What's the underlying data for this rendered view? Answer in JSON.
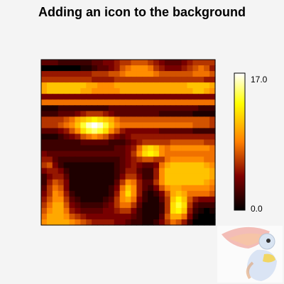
{
  "chart_data": {
    "type": "heatmap",
    "title": "Adding an icon to the background",
    "xlabel": "",
    "ylabel": "",
    "nx": 31,
    "ny": 29,
    "zlim": [
      0.0,
      17.0
    ],
    "colorbar": {
      "ticks": [
        {
          "value": 17.0,
          "label": "17.0"
        },
        {
          "value": 0.0,
          "label": "0.0"
        }
      ]
    },
    "rows_top_to_bottom": [
      [
        3,
        3,
        3,
        2,
        2,
        2,
        2,
        2,
        2,
        3,
        3,
        4,
        4,
        5,
        6,
        6,
        7,
        7,
        7,
        6,
        5,
        4,
        3,
        3,
        3,
        4,
        5,
        6,
        6,
        6,
        6
      ],
      [
        0,
        0,
        0,
        0,
        0,
        0,
        0,
        1,
        1,
        2,
        3,
        3,
        4,
        5,
        7,
        8,
        9,
        9,
        9,
        8,
        6,
        5,
        4,
        4,
        4,
        5,
        6,
        7,
        8,
        7,
        5
      ],
      [
        5,
        5,
        5,
        5,
        5,
        5,
        5,
        5,
        5,
        6,
        6,
        6,
        7,
        7,
        8,
        9,
        9,
        9,
        9,
        9,
        8,
        7,
        7,
        7,
        7,
        7,
        7,
        8,
        8,
        8,
        7
      ],
      [
        6,
        6,
        6,
        6,
        6,
        6,
        6,
        6,
        6,
        5,
        5,
        5,
        5,
        6,
        6,
        6,
        6,
        6,
        6,
        6,
        6,
        6,
        6,
        6,
        6,
        6,
        6,
        6,
        6,
        5,
        5
      ],
      [
        10,
        11,
        11,
        11,
        11,
        11,
        11,
        11,
        10,
        10,
        9,
        9,
        9,
        10,
        10,
        10,
        10,
        10,
        10,
        10,
        10,
        10,
        10,
        10,
        10,
        10,
        11,
        11,
        11,
        11,
        10
      ],
      [
        10,
        11,
        11,
        11,
        11,
        11,
        11,
        10,
        10,
        9,
        9,
        9,
        9,
        9,
        10,
        10,
        10,
        10,
        10,
        10,
        10,
        10,
        10,
        10,
        10,
        10,
        10,
        11,
        11,
        10,
        9
      ],
      [
        4,
        4,
        4,
        4,
        4,
        4,
        4,
        4,
        4,
        4,
        4,
        4,
        4,
        4,
        4,
        4,
        4,
        4,
        4,
        4,
        4,
        4,
        4,
        4,
        4,
        4,
        4,
        4,
        4,
        4,
        4
      ],
      [
        8,
        8,
        8,
        8,
        8,
        8,
        8,
        8,
        8,
        8,
        8,
        8,
        8,
        8,
        8,
        8,
        8,
        8,
        8,
        8,
        8,
        8,
        8,
        8,
        8,
        8,
        8,
        8,
        8,
        8,
        8
      ],
      [
        1,
        1,
        1,
        2,
        2,
        2,
        2,
        2,
        2,
        2,
        2,
        2,
        3,
        3,
        3,
        3,
        3,
        3,
        3,
        3,
        3,
        3,
        3,
        3,
        3,
        3,
        3,
        3,
        2,
        2,
        2
      ],
      [
        2,
        2,
        2,
        3,
        3,
        3,
        4,
        5,
        6,
        6,
        6,
        5,
        4,
        3,
        3,
        3,
        3,
        3,
        3,
        3,
        3,
        2,
        2,
        2,
        2,
        2,
        2,
        1,
        1,
        1,
        1
      ],
      [
        6,
        6,
        6,
        6,
        7,
        8,
        10,
        11,
        12,
        13,
        12,
        11,
        10,
        8,
        7,
        7,
        7,
        7,
        7,
        7,
        7,
        7,
        7,
        7,
        7,
        7,
        7,
        7,
        7,
        7,
        6
      ],
      [
        6,
        6,
        6,
        7,
        8,
        9,
        11,
        14,
        16,
        17,
        16,
        14,
        11,
        9,
        8,
        8,
        8,
        8,
        8,
        8,
        8,
        8,
        8,
        8,
        8,
        8,
        8,
        7,
        7,
        7,
        6
      ],
      [
        3,
        3,
        3,
        4,
        5,
        7,
        9,
        12,
        14,
        15,
        14,
        12,
        9,
        7,
        5,
        4,
        4,
        4,
        4,
        4,
        4,
        3,
        3,
        3,
        3,
        3,
        3,
        2,
        2,
        2,
        2
      ],
      [
        1,
        1,
        1,
        2,
        3,
        4,
        5,
        7,
        8,
        9,
        8,
        7,
        5,
        4,
        3,
        4,
        5,
        5,
        5,
        5,
        5,
        5,
        5,
        5,
        5,
        5,
        5,
        5,
        5,
        5,
        5
      ],
      [
        2,
        2,
        2,
        2,
        2,
        2,
        2,
        3,
        3,
        3,
        3,
        3,
        2,
        2,
        2,
        3,
        4,
        5,
        6,
        6,
        6,
        6,
        6,
        7,
        7,
        7,
        7,
        7,
        7,
        6,
        6
      ],
      [
        2,
        2,
        2,
        2,
        2,
        2,
        2,
        2,
        2,
        2,
        2,
        2,
        2,
        3,
        3,
        4,
        5,
        8,
        11,
        12,
        11,
        9,
        8,
        9,
        9,
        9,
        9,
        9,
        9,
        9,
        8
      ],
      [
        4,
        3,
        3,
        3,
        3,
        3,
        3,
        3,
        3,
        3,
        3,
        3,
        3,
        3,
        3,
        4,
        6,
        9,
        12,
        13,
        12,
        9,
        8,
        8,
        8,
        8,
        8,
        8,
        8,
        8,
        8
      ],
      [
        5,
        5,
        3,
        2,
        2,
        2,
        2,
        2,
        2,
        2,
        2,
        2,
        2,
        2,
        3,
        4,
        5,
        6,
        7,
        7,
        6,
        6,
        8,
        9,
        9,
        9,
        9,
        9,
        9,
        8,
        8
      ],
      [
        6,
        7,
        4,
        2,
        1,
        1,
        1,
        1,
        1,
        1,
        1,
        1,
        1,
        2,
        3,
        4,
        5,
        4,
        3,
        3,
        4,
        8,
        10,
        11,
        11,
        11,
        11,
        11,
        11,
        10,
        9
      ],
      [
        4,
        5,
        5,
        4,
        2,
        1,
        1,
        1,
        1,
        1,
        1,
        1,
        1,
        2,
        3,
        5,
        5,
        3,
        2,
        2,
        5,
        9,
        11,
        11,
        11,
        11,
        11,
        11,
        11,
        11,
        10
      ],
      [
        2,
        4,
        5,
        5,
        3,
        1,
        1,
        1,
        1,
        1,
        1,
        1,
        1,
        2,
        4,
        6,
        6,
        4,
        2,
        2,
        5,
        9,
        11,
        11,
        11,
        11,
        11,
        11,
        11,
        11,
        10
      ],
      [
        2,
        5,
        7,
        6,
        4,
        1,
        1,
        1,
        1,
        1,
        1,
        1,
        1,
        3,
        6,
        9,
        8,
        5,
        3,
        3,
        6,
        9,
        11,
        11,
        11,
        11,
        11,
        11,
        11,
        10,
        9
      ],
      [
        3,
        6,
        8,
        7,
        4,
        1,
        1,
        1,
        1,
        1,
        1,
        1,
        2,
        4,
        8,
        11,
        9,
        5,
        3,
        2,
        4,
        7,
        9,
        10,
        10,
        9,
        9,
        9,
        9,
        9,
        8
      ],
      [
        4,
        6,
        9,
        8,
        5,
        2,
        1,
        1,
        1,
        1,
        1,
        1,
        2,
        5,
        9,
        12,
        9,
        5,
        2,
        1,
        2,
        4,
        7,
        10,
        11,
        10,
        8,
        8,
        8,
        8,
        7
      ],
      [
        5,
        7,
        9,
        9,
        6,
        3,
        2,
        1,
        1,
        1,
        1,
        2,
        3,
        6,
        9,
        10,
        8,
        4,
        2,
        1,
        1,
        3,
        6,
        11,
        13,
        11,
        7,
        5,
        4,
        4,
        4
      ],
      [
        6,
        8,
        10,
        10,
        7,
        4,
        3,
        2,
        2,
        2,
        2,
        3,
        4,
        6,
        8,
        8,
        6,
        3,
        1,
        1,
        1,
        2,
        6,
        12,
        14,
        12,
        6,
        3,
        2,
        2,
        2
      ],
      [
        7,
        9,
        10,
        10,
        8,
        5,
        4,
        3,
        3,
        3,
        3,
        4,
        4,
        5,
        6,
        6,
        4,
        2,
        1,
        1,
        1,
        2,
        6,
        12,
        13,
        11,
        5,
        2,
        1,
        0,
        1
      ],
      [
        8,
        10,
        10,
        10,
        9,
        7,
        6,
        5,
        4,
        4,
        4,
        4,
        4,
        4,
        4,
        4,
        3,
        2,
        1,
        1,
        1,
        3,
        7,
        10,
        10,
        8,
        4,
        1,
        0,
        0,
        0
      ],
      [
        9,
        10,
        10,
        10,
        10,
        9,
        8,
        7,
        6,
        5,
        5,
        5,
        5,
        4,
        4,
        3,
        2,
        2,
        1,
        1,
        2,
        4,
        6,
        8,
        7,
        5,
        2,
        0,
        0,
        0,
        0
      ]
    ]
  },
  "colors": {
    "background": "#f4f4f4",
    "frame": "#000000",
    "colormap": [
      "#000000",
      "#800000",
      "#ff8000",
      "#ffff00",
      "#ffffff"
    ]
  },
  "icon": {
    "name": "toucan-icon"
  }
}
